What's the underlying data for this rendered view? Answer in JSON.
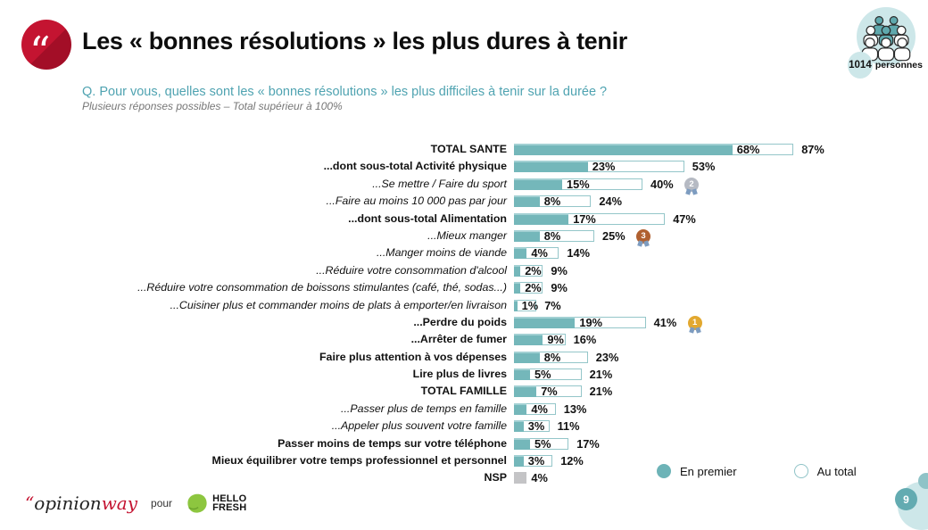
{
  "header": {
    "title": "Les « bonnes résolutions » les plus dures à tenir",
    "sample": {
      "count": "1014",
      "label": "personnes"
    }
  },
  "question": {
    "text": "Q. Pour vous, quelles sont les « bonnes résolutions » les plus difficiles à tenir sur la durée ?",
    "note": "Plusieurs réponses possibles – Total supérieur à 100%"
  },
  "chart_data": {
    "type": "bar",
    "orientation": "horizontal",
    "unit": "%",
    "xlim": [
      0,
      100
    ],
    "series_names": [
      "En premier",
      "Au total"
    ],
    "legend": [
      {
        "label": "En premier",
        "swatch": "filled"
      },
      {
        "label": "Au total",
        "swatch": "outline"
      }
    ],
    "rows": [
      {
        "label": "TOTAL SANTE",
        "style": "bold",
        "en_premier": 68,
        "au_total": 87,
        "medal": null
      },
      {
        "label": "...dont sous-total Activité physique",
        "style": "bold",
        "en_premier": 23,
        "au_total": 53,
        "medal": null
      },
      {
        "label": "...Se mettre / Faire du sport",
        "style": "italic",
        "en_premier": 15,
        "au_total": 40,
        "medal": "2"
      },
      {
        "label": "...Faire au moins 10 000 pas par jour",
        "style": "italic",
        "en_premier": 8,
        "au_total": 24,
        "medal": null
      },
      {
        "label": "...dont sous-total Alimentation",
        "style": "bold",
        "en_premier": 17,
        "au_total": 47,
        "medal": null
      },
      {
        "label": "...Mieux manger",
        "style": "italic",
        "en_premier": 8,
        "au_total": 25,
        "medal": "3"
      },
      {
        "label": "...Manger moins de viande",
        "style": "italic",
        "en_premier": 4,
        "au_total": 14,
        "medal": null
      },
      {
        "label": "...Réduire votre consommation d'alcool",
        "style": "italic",
        "en_premier": 2,
        "au_total": 9,
        "medal": null
      },
      {
        "label": "...Réduire votre consommation de boissons stimulantes (café, thé, sodas...)",
        "style": "italic",
        "en_premier": 2,
        "au_total": 9,
        "medal": null
      },
      {
        "label": "...Cuisiner plus et commander moins de plats à emporter/en livraison",
        "style": "italic",
        "en_premier": 1,
        "au_total": 7,
        "medal": null
      },
      {
        "label": "...Perdre du poids",
        "style": "bold",
        "en_premier": 19,
        "au_total": 41,
        "medal": "1"
      },
      {
        "label": "...Arrêter de fumer",
        "style": "bold",
        "en_premier": 9,
        "au_total": 16,
        "medal": null
      },
      {
        "label": "Faire plus attention à vos dépenses",
        "style": "bold",
        "en_premier": 8,
        "au_total": 23,
        "medal": null
      },
      {
        "label": "Lire plus de livres",
        "style": "bold",
        "en_premier": 5,
        "au_total": 21,
        "medal": null
      },
      {
        "label": "TOTAL FAMILLE",
        "style": "bold",
        "en_premier": 7,
        "au_total": 21,
        "medal": null
      },
      {
        "label": "...Passer plus de temps en famille",
        "style": "italic",
        "en_premier": 4,
        "au_total": 13,
        "medal": null
      },
      {
        "label": "...Appeler plus souvent votre famille",
        "style": "italic",
        "en_premier": 3,
        "au_total": 11,
        "medal": null
      },
      {
        "label": "Passer moins de temps sur votre téléphone",
        "style": "bold",
        "en_premier": 5,
        "au_total": 17,
        "medal": null
      },
      {
        "label": "Mieux équilibrer votre temps professionnel et personnel",
        "style": "bold",
        "en_premier": 3,
        "au_total": 12,
        "medal": null
      },
      {
        "label": "NSP",
        "style": "bold",
        "en_premier": 4,
        "au_total": null,
        "medal": null,
        "bar_color": "gray"
      }
    ]
  },
  "colors": {
    "accent_red": "#c41230",
    "bar_teal": "#74b7ba",
    "teal_light": "#cde7e9",
    "bar_gray": "#c4c4c6",
    "question_teal": "#4fa3b1",
    "medal_gold": "#e2a82f",
    "medal_silver": "#b6bac3",
    "medal_bronze": "#b06030",
    "hellofresh_green": "#8dc63f"
  },
  "footer": {
    "agency_quote": "“",
    "agency_part1": "opinion",
    "agency_part2": "way",
    "pour": "pour",
    "client_line1": "HELLO",
    "client_line2": "FRESH",
    "page": "9"
  }
}
